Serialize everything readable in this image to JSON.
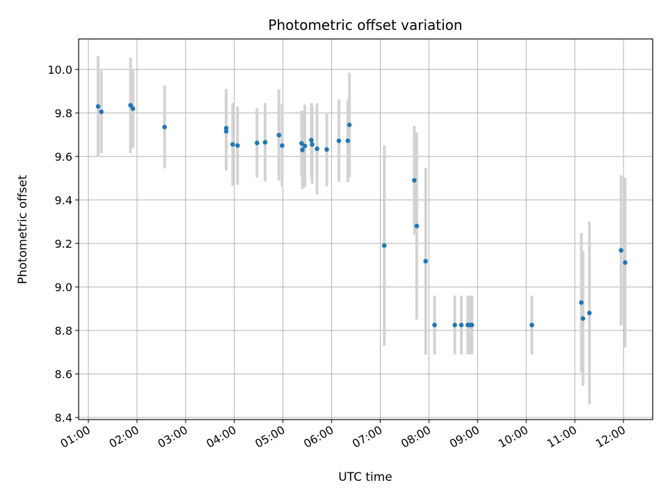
{
  "chart_data": {
    "type": "scatter",
    "title": "Photometric offset variation",
    "xlabel": "UTC time",
    "ylabel": "Photometric offset",
    "x_ticks": [
      "01:00",
      "02:00",
      "03:00",
      "04:00",
      "05:00",
      "06:00",
      "07:00",
      "08:00",
      "09:00",
      "10:00",
      "11:00",
      "12:00"
    ],
    "y_ticks": [
      "8.4",
      "8.6",
      "8.8",
      "9.0",
      "9.2",
      "9.4",
      "9.6",
      "9.8",
      "10.0"
    ],
    "xlim": [
      "00:48",
      "12:36"
    ],
    "ylim": [
      8.39,
      10.14
    ],
    "grid": true,
    "colors": {
      "point": "#1f77b4",
      "errorbar": "#d3d3d3",
      "grid": "#b0b0b0"
    },
    "points": [
      {
        "x": "01:12",
        "y": 9.83,
        "err": 0.23
      },
      {
        "x": "01:16",
        "y": 9.805,
        "err": 0.19
      },
      {
        "x": "01:52",
        "y": 9.835,
        "err": 0.22
      },
      {
        "x": "01:55",
        "y": 9.82,
        "err": 0.18
      },
      {
        "x": "02:34",
        "y": 9.735,
        "err": 0.19
      },
      {
        "x": "03:50",
        "y": 9.73,
        "err": 0.18
      },
      {
        "x": "03:50",
        "y": 9.715,
        "err": 0.18
      },
      {
        "x": "03:58",
        "y": 9.655,
        "err": 0.19
      },
      {
        "x": "04:04",
        "y": 9.65,
        "err": 0.18
      },
      {
        "x": "04:28",
        "y": 9.662,
        "err": 0.16
      },
      {
        "x": "04:38",
        "y": 9.665,
        "err": 0.18
      },
      {
        "x": "04:55",
        "y": 9.698,
        "err": 0.21
      },
      {
        "x": "04:59",
        "y": 9.65,
        "err": 0.19
      },
      {
        "x": "05:23",
        "y": 9.66,
        "err": 0.15
      },
      {
        "x": "05:24",
        "y": 9.63,
        "err": 0.18
      },
      {
        "x": "05:27",
        "y": 9.648,
        "err": 0.19
      },
      {
        "x": "05:35",
        "y": 9.675,
        "err": 0.17
      },
      {
        "x": "05:36",
        "y": 9.655,
        "err": 0.18
      },
      {
        "x": "05:42",
        "y": 9.635,
        "err": 0.21
      },
      {
        "x": "05:54",
        "y": 9.632,
        "err": 0.17
      },
      {
        "x": "06:09",
        "y": 9.672,
        "err": 0.19
      },
      {
        "x": "06:20",
        "y": 9.672,
        "err": 0.19
      },
      {
        "x": "06:22",
        "y": 9.745,
        "err": 0.24
      },
      {
        "x": "07:05",
        "y": 9.19,
        "err": 0.46
      },
      {
        "x": "07:42",
        "y": 9.49,
        "err": 0.25
      },
      {
        "x": "07:45",
        "y": 9.28,
        "err": 0.43
      },
      {
        "x": "07:56",
        "y": 9.118,
        "err": 0.43
      },
      {
        "x": "08:07",
        "y": 8.825,
        "err": 0.135
      },
      {
        "x": "08:32",
        "y": 8.825,
        "err": 0.135
      },
      {
        "x": "08:40",
        "y": 8.825,
        "err": 0.135
      },
      {
        "x": "08:48",
        "y": 8.825,
        "err": 0.135
      },
      {
        "x": "08:51",
        "y": 8.825,
        "err": 0.135
      },
      {
        "x": "08:53",
        "y": 8.825,
        "err": 0.135
      },
      {
        "x": "10:07",
        "y": 8.825,
        "err": 0.135
      },
      {
        "x": "11:08",
        "y": 8.928,
        "err": 0.32
      },
      {
        "x": "11:10",
        "y": 8.855,
        "err": 0.31
      },
      {
        "x": "11:18",
        "y": 8.88,
        "err": 0.42
      },
      {
        "x": "11:57",
        "y": 9.168,
        "err": 0.345
      },
      {
        "x": "12:02",
        "y": 9.112,
        "err": 0.39
      }
    ]
  }
}
